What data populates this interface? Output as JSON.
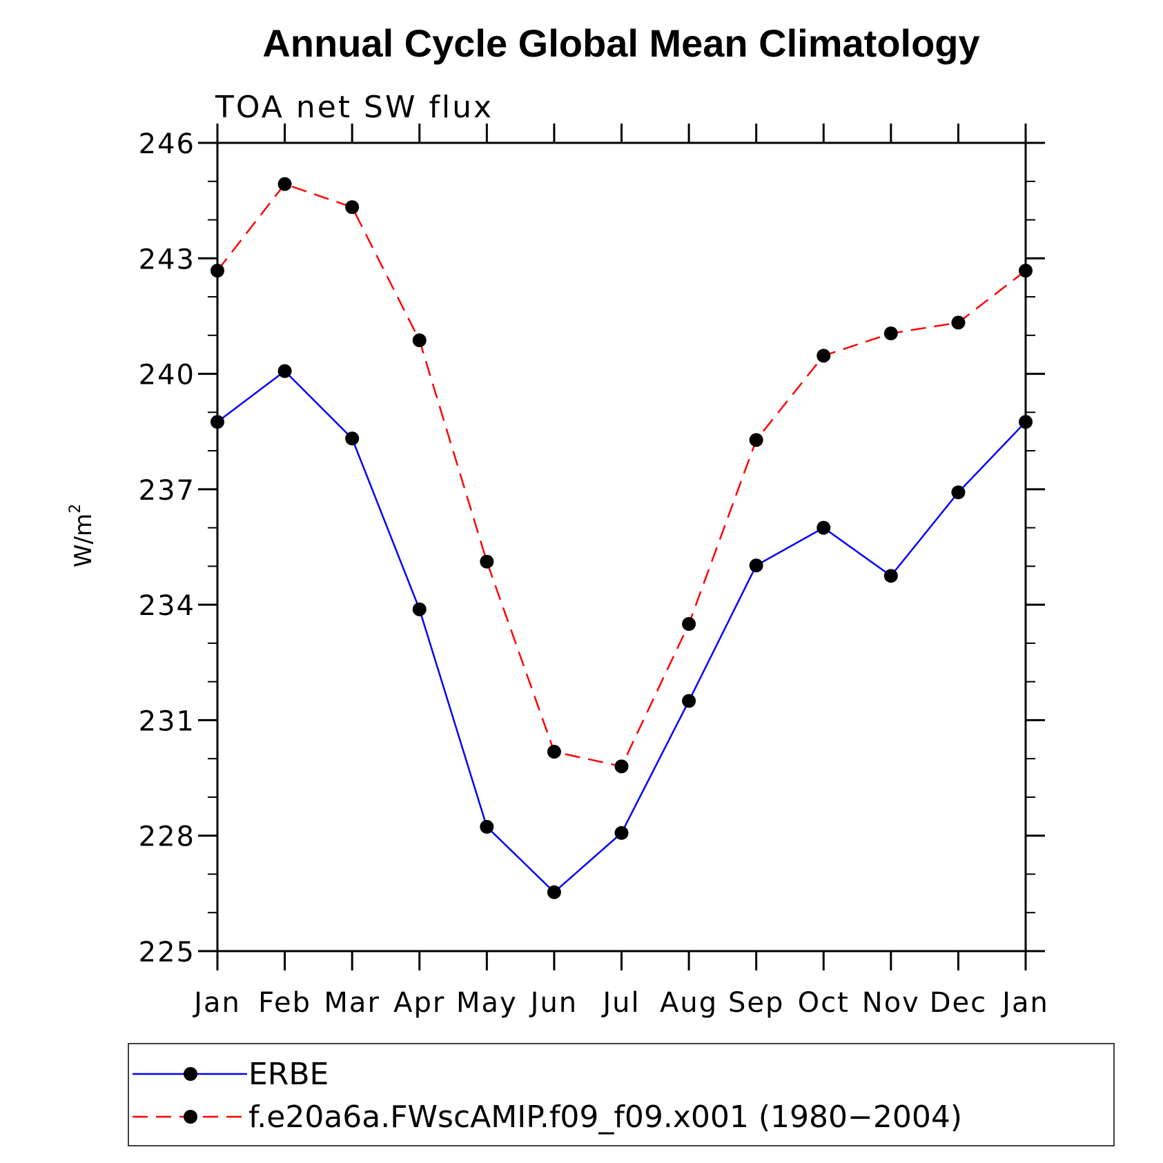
{
  "chart_data": {
    "type": "line",
    "title": "Annual Cycle Global Mean Climatology",
    "subtitle": "TOA net SW flux",
    "ylabel": "W/m",
    "ylabel_sup": "2",
    "xlabel": "",
    "categories": [
      "Jan",
      "Feb",
      "Mar",
      "Apr",
      "May",
      "Jun",
      "Jul",
      "Aug",
      "Sep",
      "Oct",
      "Nov",
      "Dec",
      "Jan"
    ],
    "ylim": [
      225,
      246
    ],
    "yticks": [
      225,
      228,
      231,
      234,
      237,
      240,
      243,
      246
    ],
    "yminor_step": 1,
    "grid": false,
    "legend_position": "bottom",
    "series": [
      {
        "name": "ERBE",
        "color": "#0000ff",
        "dash": "solid",
        "values": [
          238.75,
          240.07,
          238.32,
          233.88,
          228.23,
          226.53,
          228.07,
          231.5,
          235.02,
          236.0,
          234.75,
          236.92,
          238.75
        ]
      },
      {
        "name": "f.e20a6a.FWscAMIP.f09_f09.x001 (1980−2004)",
        "color": "#ff0000",
        "dash": "dashed",
        "values": [
          242.68,
          244.93,
          244.33,
          240.87,
          235.12,
          230.18,
          229.8,
          233.5,
          238.28,
          240.47,
          241.05,
          241.33,
          242.68
        ]
      }
    ]
  }
}
